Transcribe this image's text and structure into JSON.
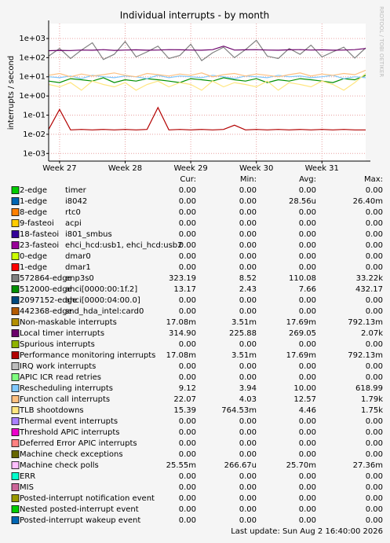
{
  "chart_data": {
    "type": "line",
    "title": "Individual interrupts - by month",
    "y_label": "interrupts / second",
    "watermark": "RRDTOOL / TOBI OETIKER",
    "footer": "Last update: Sun Aug  2 16:40:00 2026",
    "log_y": true,
    "grid": true,
    "ylim": [
      0.0004,
      6000
    ],
    "yticks": [
      {
        "value": 0.001,
        "label": "1e-03"
      },
      {
        "value": 0.01,
        "label": "1e-02"
      },
      {
        "value": 0.1,
        "label": "1e-01"
      },
      {
        "value": 1,
        "label": "1e+00"
      },
      {
        "value": 10,
        "label": "1e+01"
      },
      {
        "value": 100,
        "label": "1e+02"
      },
      {
        "value": 1000,
        "label": "1e+03"
      }
    ],
    "categories": [
      null,
      "Week 27",
      null,
      null,
      null,
      null,
      null,
      "Week 28",
      null,
      null,
      null,
      null,
      null,
      "Week 29",
      null,
      null,
      null,
      null,
      null,
      "Week 30",
      null,
      null,
      null,
      null,
      null,
      "Week 31",
      null,
      null,
      null,
      null
    ],
    "legend_headers": [
      "Cur:",
      "Min:",
      "Avg:",
      "Max:"
    ],
    "series": [
      {
        "name": "2-edge",
        "device": "timer",
        "color": "#00cc00",
        "stats": [
          "0.00",
          "0.00",
          "0.00",
          "0.00"
        ]
      },
      {
        "name": "1-edge",
        "device": "i8042",
        "color": "#0066b3",
        "stats": [
          "0.00",
          "0.00",
          "28.56u",
          "26.40m"
        ]
      },
      {
        "name": "8-edge",
        "device": "rtc0",
        "color": "#ff8000",
        "stats": [
          "0.00",
          "0.00",
          "0.00",
          "0.00"
        ]
      },
      {
        "name": "9-fasteoi",
        "device": "acpi",
        "color": "#ffcc00",
        "stats": [
          "0.00",
          "0.00",
          "0.00",
          "0.00"
        ]
      },
      {
        "name": "18-fasteoi",
        "device": "i801_smbus",
        "color": "#330099",
        "stats": [
          "0.00",
          "0.00",
          "0.00",
          "0.00"
        ]
      },
      {
        "name": "23-fasteoi",
        "device": "ehci_hcd:usb1, ehci_hcd:usb2",
        "color": "#990099",
        "stats": [
          "0.00",
          "0.00",
          "0.00",
          "0.00"
        ]
      },
      {
        "name": "0-edge",
        "device": "dmar0",
        "color": "#ccff00",
        "stats": [
          "0.00",
          "0.00",
          "0.00",
          "0.00"
        ]
      },
      {
        "name": "1-edge",
        "device": "dmar1",
        "color": "#ff0000",
        "stats": [
          "0.00",
          "0.00",
          "0.00",
          "0.00"
        ]
      },
      {
        "name": "572864-edge",
        "device": "enp3s0",
        "color": "#808080",
        "stats": [
          "323.19",
          "8.52",
          "110.08",
          "33.22k"
        ],
        "values": [
          120,
          300,
          90,
          250,
          600,
          80,
          150,
          700,
          110,
          200,
          400,
          90,
          130,
          500,
          70,
          180,
          350,
          100,
          260,
          800,
          120,
          90,
          300,
          150,
          450,
          110,
          200,
          350,
          95,
          320
        ]
      },
      {
        "name": "512000-edge",
        "device": "ahci[0000:00:1f.2]",
        "color": "#008f00",
        "stats": [
          "13.17",
          "2.43",
          "7.66",
          "432.17"
        ],
        "values": [
          6,
          5,
          8,
          7,
          6,
          9,
          5,
          7,
          6,
          8,
          7,
          6,
          5,
          8,
          7,
          6,
          9,
          7,
          6,
          8,
          5,
          7,
          6,
          8,
          7,
          6,
          5,
          8,
          7,
          12
        ]
      },
      {
        "name": "2097152-edge",
        "device": "ahci[0000:04:00.0]",
        "color": "#00487d",
        "stats": [
          "0.00",
          "0.00",
          "0.00",
          "0.00"
        ]
      },
      {
        "name": "442368-edge",
        "device": "snd_hda_intel:card0",
        "color": "#b35a00",
        "stats": [
          "0.00",
          "0.00",
          "0.00",
          "0.00"
        ]
      },
      {
        "name": "Non-maskable interrupts",
        "color": "#b38f00",
        "stats": [
          "17.08m",
          "3.51m",
          "17.69m",
          "792.13m"
        ]
      },
      {
        "name": "Local timer interrupts",
        "color": "#6b006b",
        "stats": [
          "314.90",
          "225.88",
          "269.05",
          "2.07k"
        ],
        "values": [
          230,
          240,
          235,
          250,
          245,
          260,
          240,
          250,
          255,
          245,
          250,
          260,
          255,
          250,
          245,
          260,
          400,
          250,
          255,
          260,
          250,
          245,
          255,
          260,
          250,
          255,
          245,
          250,
          260,
          300
        ]
      },
      {
        "name": "Spurious interrupts",
        "color": "#8fb300",
        "stats": [
          "0.00",
          "0.00",
          "0.00",
          "0.00"
        ]
      },
      {
        "name": "Performance monitoring interrupts",
        "color": "#b30000",
        "stats": [
          "17.08m",
          "3.51m",
          "17.69m",
          "792.13m"
        ],
        "values": [
          0.018,
          0.2,
          0.017,
          0.018,
          0.017,
          0.018,
          0.017,
          0.018,
          0.017,
          0.018,
          0.25,
          0.017,
          0.018,
          0.017,
          0.018,
          0.017,
          0.018,
          0.03,
          0.017,
          0.018,
          0.017,
          0.018,
          0.017,
          0.018,
          0.017,
          0.018,
          0.017,
          0.018,
          0.017,
          0.017
        ]
      },
      {
        "name": "IRQ work interrupts",
        "color": "#bebebe",
        "stats": [
          "0.00",
          "0.00",
          "0.00",
          "0.00"
        ]
      },
      {
        "name": "APIC ICR read retries",
        "color": "#80ff80",
        "stats": [
          "0.00",
          "0.00",
          "0.00",
          "0.00"
        ]
      },
      {
        "name": "Rescheduling interrupts",
        "color": "#80c9ff",
        "stats": [
          "9.12",
          "3.94",
          "10.00",
          "618.99"
        ],
        "values": [
          10,
          9,
          11,
          8,
          12,
          10,
          9,
          11,
          10,
          8,
          12,
          9,
          11,
          10,
          9,
          12,
          10,
          8,
          11,
          10,
          9,
          12,
          10,
          11,
          9,
          10,
          12,
          8,
          10,
          9
        ]
      },
      {
        "name": "Function call interrupts",
        "color": "#ffc080",
        "stats": [
          "22.07",
          "4.03",
          "12.57",
          "1.79k"
        ],
        "values": [
          12,
          15,
          10,
          14,
          11,
          13,
          16,
          12,
          10,
          15,
          13,
          11,
          14,
          12,
          16,
          10,
          13,
          15,
          11,
          14,
          12,
          10,
          13,
          16,
          11,
          14,
          12,
          15,
          13,
          22
        ]
      },
      {
        "name": "TLB shootdowns",
        "color": "#ffe680",
        "stats": [
          "15.39",
          "764.53m",
          "4.46",
          "1.75k"
        ],
        "values": [
          4,
          3,
          5,
          2,
          6,
          4,
          3,
          5,
          2,
          4,
          6,
          3,
          5,
          4,
          2,
          6,
          3,
          5,
          4,
          3,
          6,
          2,
          5,
          4,
          3,
          6,
          4,
          2,
          5,
          15
        ]
      },
      {
        "name": "Thermal event interrupts",
        "color": "#aa80ff",
        "stats": [
          "0.00",
          "0.00",
          "0.00",
          "0.00"
        ]
      },
      {
        "name": "Threshold APIC interrupts",
        "color": "#ee00cc",
        "stats": [
          "0.00",
          "0.00",
          "0.00",
          "0.00"
        ]
      },
      {
        "name": "Deferred Error APIC interrupts",
        "color": "#ff8080",
        "stats": [
          "0.00",
          "0.00",
          "0.00",
          "0.00"
        ]
      },
      {
        "name": "Machine check exceptions",
        "color": "#666600",
        "stats": [
          "0.00",
          "0.00",
          "0.00",
          "0.00"
        ]
      },
      {
        "name": "Machine check polls",
        "color": "#ffbfff",
        "stats": [
          "25.55m",
          "266.67u",
          "25.70m",
          "27.36m"
        ]
      },
      {
        "name": "ERR",
        "color": "#00ffcc",
        "stats": [
          "0.00",
          "0.00",
          "0.00",
          "0.00"
        ]
      },
      {
        "name": "MIS",
        "color": "#cc6699",
        "stats": [
          "0.00",
          "0.00",
          "0.00",
          "0.00"
        ]
      },
      {
        "name": "Posted-interrupt notification event",
        "color": "#999900",
        "stats": [
          "0.00",
          "0.00",
          "0.00",
          "0.00"
        ]
      },
      {
        "name": "Nested posted-interrupt event",
        "color": "#00cc00",
        "stats": [
          "0.00",
          "0.00",
          "0.00",
          "0.00"
        ]
      },
      {
        "name": "Posted-interrupt wakeup event",
        "color": "#0066b3",
        "stats": [
          "0.00",
          "0.00",
          "0.00",
          "0.00"
        ]
      }
    ]
  }
}
